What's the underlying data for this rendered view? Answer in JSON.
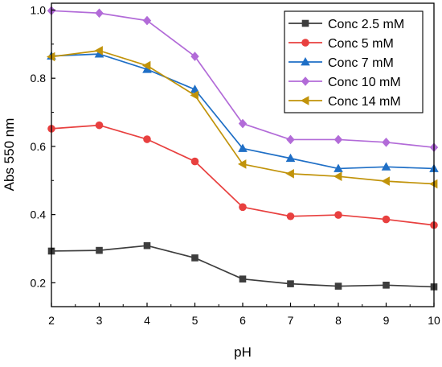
{
  "chart_data": {
    "type": "line",
    "xlabel": "pH",
    "ylabel": "Abs 550 nm",
    "x": [
      2,
      3,
      4,
      5,
      6,
      7,
      8,
      9,
      10
    ],
    "xlim": [
      2,
      10
    ],
    "ylim": [
      0.13,
      1.02
    ],
    "xticks": [
      2,
      3,
      4,
      5,
      6,
      7,
      8,
      9,
      10
    ],
    "yticks": [
      0.2,
      0.4,
      0.6,
      0.8,
      1.0
    ],
    "xtick_labels": [
      "2",
      "3",
      "4",
      "5",
      "6",
      "7",
      "8",
      "9",
      "10"
    ],
    "ytick_labels": [
      "0.2",
      "0.4",
      "0.6",
      "0.8",
      "1.0"
    ],
    "grid": false,
    "legend_position": "top-right",
    "series": [
      {
        "name": "Conc 2.5 mM",
        "color": "#3d3d3d",
        "marker": "square",
        "values": [
          0.293,
          0.295,
          0.309,
          0.273,
          0.211,
          0.197,
          0.19,
          0.193,
          0.188
        ]
      },
      {
        "name": "Conc 5 mM",
        "color": "#e8403f",
        "marker": "circle",
        "values": [
          0.652,
          0.662,
          0.621,
          0.556,
          0.422,
          0.395,
          0.399,
          0.386,
          0.369
        ]
      },
      {
        "name": "Conc 7 mM",
        "color": "#1f6fc6",
        "marker": "triangle-up",
        "values": [
          0.865,
          0.871,
          0.826,
          0.767,
          0.594,
          0.565,
          0.535,
          0.54,
          0.535
        ]
      },
      {
        "name": "Conc 10 mM",
        "color": "#b26bd8",
        "marker": "diamond",
        "values": [
          0.998,
          0.991,
          0.969,
          0.864,
          0.667,
          0.62,
          0.62,
          0.612,
          0.597
        ]
      },
      {
        "name": "Conc 14 mM",
        "color": "#c1930a",
        "marker": "triangle-left",
        "values": [
          0.863,
          0.881,
          0.837,
          0.75,
          0.548,
          0.52,
          0.512,
          0.498,
          0.49
        ]
      }
    ]
  }
}
